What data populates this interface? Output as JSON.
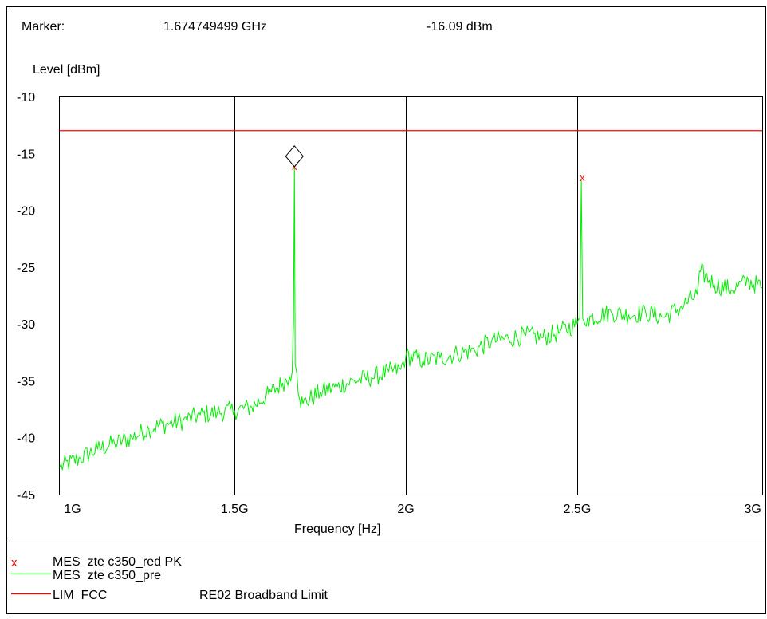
{
  "marker": {
    "label": "Marker:",
    "frequency": "1.674749499 GHz",
    "level": "-16.09 dBm",
    "x_ghz": 1.6747,
    "y_dbm": -16.09
  },
  "colors": {
    "trace": "#00ee00",
    "limit": "#ff0000",
    "peak": "#ff0000",
    "grid": "#000000"
  },
  "chart_data": {
    "type": "line",
    "ylabel": "Level [dBm]",
    "xlabel": "Frequency [Hz]",
    "xlim": [
      0.99,
      3.04
    ],
    "ylim": [
      -45,
      -10
    ],
    "x_ticks": [
      {
        "value": 1.0,
        "label": "1G"
      },
      {
        "value": 1.5,
        "label": "1.5G"
      },
      {
        "value": 2.0,
        "label": "2G"
      },
      {
        "value": 2.5,
        "label": "2.5G"
      },
      {
        "value": 3.0,
        "label": "3G"
      }
    ],
    "y_ticks": [
      {
        "value": -10,
        "label": "-10"
      },
      {
        "value": -15,
        "label": "-15"
      },
      {
        "value": -20,
        "label": "-20"
      },
      {
        "value": -25,
        "label": "-25"
      },
      {
        "value": -30,
        "label": "-30"
      },
      {
        "value": -35,
        "label": "-35"
      },
      {
        "value": -40,
        "label": "-40"
      },
      {
        "value": -45,
        "label": "-45"
      }
    ],
    "v_gridlines": [
      1.5,
      2.0,
      2.5
    ],
    "series": [
      {
        "name": "MES  zte c350_pre",
        "kind": "line",
        "x": [
          0.99,
          1.05,
          1.1,
          1.15,
          1.2,
          1.25,
          1.3,
          1.35,
          1.4,
          1.45,
          1.5,
          1.55,
          1.6,
          1.64,
          1.66,
          1.668,
          1.672,
          1.6747,
          1.677,
          1.682,
          1.69,
          1.7,
          1.75,
          1.8,
          1.85,
          1.9,
          1.95,
          1.985,
          2.0,
          2.05,
          2.1,
          2.15,
          2.2,
          2.25,
          2.3,
          2.35,
          2.4,
          2.45,
          2.5,
          2.508,
          2.512,
          2.516,
          2.52,
          2.53,
          2.6,
          2.65,
          2.7,
          2.75,
          2.8,
          2.85,
          2.86,
          2.9,
          2.95,
          3.0,
          3.04
        ],
        "y": [
          -42.6,
          -41.8,
          -41.0,
          -40.5,
          -40.0,
          -39.2,
          -38.8,
          -38.5,
          -38.0,
          -37.8,
          -37.6,
          -37.3,
          -36.2,
          -35.2,
          -34.6,
          -34.2,
          -30.0,
          -16.1,
          -33.5,
          -34.4,
          -36.6,
          -37.0,
          -36.0,
          -35.5,
          -35.0,
          -34.7,
          -34.2,
          -34.0,
          -32.8,
          -33.2,
          -33.0,
          -32.6,
          -32.3,
          -31.5,
          -31.3,
          -31.0,
          -31.2,
          -30.7,
          -30.0,
          -29.6,
          -17.4,
          -29.5,
          -29.8,
          -29.5,
          -29.0,
          -29.2,
          -29.0,
          -29.4,
          -28.6,
          -27.4,
          -25.4,
          -26.5,
          -27.0,
          -26.2,
          -26.8
        ]
      },
      {
        "name": "MES  zte c350_red PK",
        "kind": "points",
        "marker_symbol": "x",
        "x": [
          1.6747,
          2.515
        ],
        "y": [
          -16.1,
          -17.1
        ]
      },
      {
        "name": "LIM  FCC",
        "description": "RE02 Broadband Limit",
        "kind": "limit",
        "x": [
          0.99,
          3.04
        ],
        "y": [
          -13.0,
          -13.0
        ]
      }
    ]
  }
}
